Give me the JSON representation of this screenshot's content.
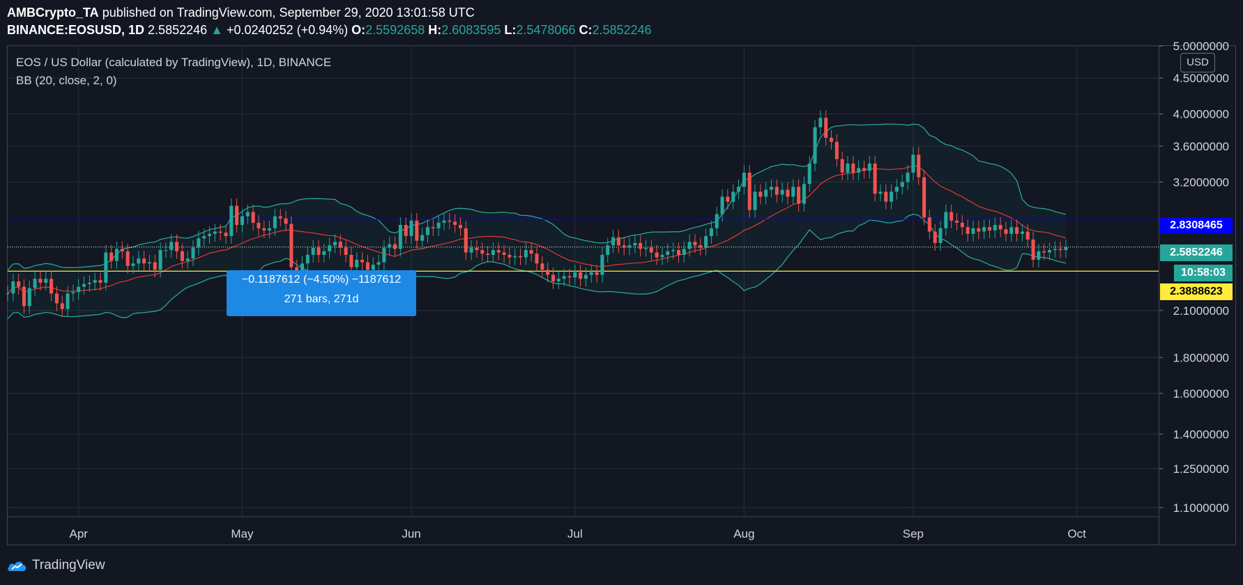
{
  "header": {
    "author": "AMBCrypto_TA",
    "published": "published on TradingView.com, September 29, 2020 13:01:58 UTC",
    "symbol": "BINANCE:EOSUSD, 1D",
    "last": "2.5852246",
    "change": "+0.0240252 (+0.94%)",
    "o_label": "O:",
    "o_value": "2.5592658",
    "h_label": "H:",
    "h_value": "2.6083595",
    "l_label": "L:",
    "l_value": "2.5478066",
    "c_label": "C:",
    "c_value": "2.5852246"
  },
  "legend": {
    "symbol_title": "EOS / US Dollar (calculated by TradingView), 1D, BINANCE",
    "indicator": "BB (20, close, 2, 0)"
  },
  "axis_currency": "USD",
  "tags": {
    "blue_line": "2.8308465",
    "price": "2.5852246",
    "countdown": "10:58:03",
    "yellow_line": "2.3888623"
  },
  "tooltip": {
    "line1": "−0.1187612 (−4.50%) −1187612",
    "line2": "271 bars, 271d"
  },
  "footer": {
    "brand": "TradingView"
  },
  "colors": {
    "background": "#131722",
    "up": "#26a69a",
    "down": "#ef5350",
    "bb_band": "#26a69a",
    "bb_basis": "#e53935",
    "blue_line": "#0000ff",
    "yellow_line": "#ffeb3b",
    "tooltip": "#1e88e5"
  },
  "chart_data": {
    "type": "candlestick",
    "title": "EOS / US Dollar (calculated by TradingView), 1D, BINANCE",
    "y_scale": "log",
    "ylim": [
      1.07,
      5.0
    ],
    "y_ticks": [
      "5.0000000",
      "4.5000000",
      "4.0000000",
      "3.6000000",
      "3.2000000",
      "2.1000000",
      "1.8000000",
      "1.6000000",
      "1.4000000",
      "1.2500000",
      "1.1000000"
    ],
    "x_ticks": [
      "Apr",
      "May",
      "Jun",
      "Jul",
      "Aug",
      "Sep",
      "Oct"
    ],
    "x_tick_dates": [
      "2020-04-01",
      "2020-05-01",
      "2020-06-01",
      "2020-07-01",
      "2020-08-01",
      "2020-09-01",
      "2020-10-01"
    ],
    "xlim": [
      "2020-03-19",
      "2020-10-16"
    ],
    "horizontal_lines": [
      {
        "value": 2.8308465,
        "color": "#0000ff"
      },
      {
        "value": 2.3888623,
        "color": "#ffeb3b"
      },
      {
        "value": 2.5852246,
        "color": "#ffffff",
        "style": "dotted"
      }
    ],
    "measure_range": [
      "2020-01-02",
      "2020-09-29"
    ],
    "closes": [
      [
        "2020-03-19",
        2.22
      ],
      [
        "2020-03-20",
        2.31
      ],
      [
        "2020-03-21",
        2.27
      ],
      [
        "2020-03-22",
        2.13
      ],
      [
        "2020-03-23",
        2.26
      ],
      [
        "2020-03-24",
        2.33
      ],
      [
        "2020-03-25",
        2.3
      ],
      [
        "2020-03-26",
        2.33
      ],
      [
        "2020-03-27",
        2.22
      ],
      [
        "2020-03-28",
        2.15
      ],
      [
        "2020-03-29",
        2.11
      ],
      [
        "2020-03-30",
        2.22
      ],
      [
        "2020-03-31",
        2.23
      ],
      [
        "2020-04-01",
        2.27
      ],
      [
        "2020-04-02",
        2.29
      ],
      [
        "2020-04-03",
        2.3
      ],
      [
        "2020-04-04",
        2.32
      ],
      [
        "2020-04-05",
        2.3
      ],
      [
        "2020-04-06",
        2.54
      ],
      [
        "2020-04-07",
        2.47
      ],
      [
        "2020-04-08",
        2.57
      ],
      [
        "2020-04-09",
        2.55
      ],
      [
        "2020-04-10",
        2.43
      ],
      [
        "2020-04-11",
        2.45
      ],
      [
        "2020-04-12",
        2.49
      ],
      [
        "2020-04-13",
        2.45
      ],
      [
        "2020-04-14",
        2.46
      ],
      [
        "2020-04-15",
        2.4
      ],
      [
        "2020-04-16",
        2.56
      ],
      [
        "2020-04-17",
        2.56
      ],
      [
        "2020-04-18",
        2.63
      ],
      [
        "2020-04-19",
        2.55
      ],
      [
        "2020-04-20",
        2.47
      ],
      [
        "2020-04-21",
        2.49
      ],
      [
        "2020-04-22",
        2.58
      ],
      [
        "2020-04-23",
        2.66
      ],
      [
        "2020-04-24",
        2.68
      ],
      [
        "2020-04-25",
        2.7
      ],
      [
        "2020-04-26",
        2.72
      ],
      [
        "2020-04-27",
        2.71
      ],
      [
        "2020-04-28",
        2.68
      ],
      [
        "2020-04-29",
        2.96
      ],
      [
        "2020-04-30",
        2.78
      ],
      [
        "2020-05-01",
        2.86
      ],
      [
        "2020-05-02",
        2.9
      ],
      [
        "2020-05-03",
        2.8
      ],
      [
        "2020-05-04",
        2.75
      ],
      [
        "2020-05-05",
        2.73
      ],
      [
        "2020-05-06",
        2.75
      ],
      [
        "2020-05-07",
        2.86
      ],
      [
        "2020-05-08",
        2.84
      ],
      [
        "2020-05-09",
        2.79
      ],
      [
        "2020-05-10",
        2.42
      ],
      [
        "2020-05-11",
        2.35
      ],
      [
        "2020-05-12",
        2.45
      ],
      [
        "2020-05-13",
        2.52
      ],
      [
        "2020-05-14",
        2.58
      ],
      [
        "2020-05-15",
        2.52
      ],
      [
        "2020-05-16",
        2.55
      ],
      [
        "2020-05-17",
        2.6
      ],
      [
        "2020-05-18",
        2.63
      ],
      [
        "2020-05-19",
        2.58
      ],
      [
        "2020-05-20",
        2.52
      ],
      [
        "2020-05-21",
        2.42
      ],
      [
        "2020-05-22",
        2.48
      ],
      [
        "2020-05-23",
        2.46
      ],
      [
        "2020-05-24",
        2.4
      ],
      [
        "2020-05-25",
        2.44
      ],
      [
        "2020-05-26",
        2.46
      ],
      [
        "2020-05-27",
        2.58
      ],
      [
        "2020-05-28",
        2.61
      ],
      [
        "2020-05-29",
        2.57
      ],
      [
        "2020-05-30",
        2.78
      ],
      [
        "2020-05-31",
        2.68
      ],
      [
        "2020-06-01",
        2.82
      ],
      [
        "2020-06-02",
        2.64
      ],
      [
        "2020-06-03",
        2.69
      ],
      [
        "2020-06-04",
        2.76
      ],
      [
        "2020-06-05",
        2.75
      ],
      [
        "2020-06-06",
        2.8
      ],
      [
        "2020-06-07",
        2.82
      ],
      [
        "2020-06-08",
        2.81
      ],
      [
        "2020-06-09",
        2.78
      ],
      [
        "2020-06-10",
        2.75
      ],
      [
        "2020-06-11",
        2.54
      ],
      [
        "2020-06-12",
        2.58
      ],
      [
        "2020-06-13",
        2.56
      ],
      [
        "2020-06-14",
        2.53
      ],
      [
        "2020-06-15",
        2.52
      ],
      [
        "2020-06-16",
        2.56
      ],
      [
        "2020-06-17",
        2.54
      ],
      [
        "2020-06-18",
        2.52
      ],
      [
        "2020-06-19",
        2.5
      ],
      [
        "2020-06-20",
        2.51
      ],
      [
        "2020-06-21",
        2.5
      ],
      [
        "2020-06-22",
        2.56
      ],
      [
        "2020-06-23",
        2.53
      ],
      [
        "2020-06-24",
        2.45
      ],
      [
        "2020-06-25",
        2.4
      ],
      [
        "2020-06-26",
        2.36
      ],
      [
        "2020-06-27",
        2.31
      ],
      [
        "2020-06-28",
        2.33
      ],
      [
        "2020-06-29",
        2.35
      ],
      [
        "2020-06-30",
        2.34
      ],
      [
        "2020-07-01",
        2.38
      ],
      [
        "2020-07-02",
        2.33
      ],
      [
        "2020-07-03",
        2.36
      ],
      [
        "2020-07-04",
        2.38
      ],
      [
        "2020-07-05",
        2.36
      ],
      [
        "2020-07-06",
        2.52
      ],
      [
        "2020-07-07",
        2.6
      ],
      [
        "2020-07-08",
        2.67
      ],
      [
        "2020-07-09",
        2.6
      ],
      [
        "2020-07-10",
        2.58
      ],
      [
        "2020-07-11",
        2.6
      ],
      [
        "2020-07-12",
        2.62
      ],
      [
        "2020-07-13",
        2.57
      ],
      [
        "2020-07-14",
        2.58
      ],
      [
        "2020-07-15",
        2.54
      ],
      [
        "2020-07-16",
        2.5
      ],
      [
        "2020-07-17",
        2.52
      ],
      [
        "2020-07-18",
        2.55
      ],
      [
        "2020-07-19",
        2.56
      ],
      [
        "2020-07-20",
        2.52
      ],
      [
        "2020-07-21",
        2.57
      ],
      [
        "2020-07-22",
        2.63
      ],
      [
        "2020-07-23",
        2.6
      ],
      [
        "2020-07-24",
        2.58
      ],
      [
        "2020-07-25",
        2.68
      ],
      [
        "2020-07-26",
        2.75
      ],
      [
        "2020-07-27",
        2.88
      ],
      [
        "2020-07-28",
        3.05
      ],
      [
        "2020-07-29",
        3.0
      ],
      [
        "2020-07-30",
        3.1
      ],
      [
        "2020-07-31",
        3.15
      ],
      [
        "2020-08-01",
        3.3
      ],
      [
        "2020-08-02",
        2.92
      ],
      [
        "2020-08-03",
        3.1
      ],
      [
        "2020-08-04",
        3.05
      ],
      [
        "2020-08-05",
        3.12
      ],
      [
        "2020-08-06",
        3.15
      ],
      [
        "2020-08-07",
        3.07
      ],
      [
        "2020-08-08",
        3.12
      ],
      [
        "2020-08-09",
        3.05
      ],
      [
        "2020-08-10",
        3.15
      ],
      [
        "2020-08-11",
        2.98
      ],
      [
        "2020-08-12",
        3.18
      ],
      [
        "2020-08-13",
        3.4
      ],
      [
        "2020-08-14",
        3.83
      ],
      [
        "2020-08-15",
        3.95
      ],
      [
        "2020-08-16",
        3.7
      ],
      [
        "2020-08-17",
        3.65
      ],
      [
        "2020-08-18",
        3.45
      ],
      [
        "2020-08-19",
        3.3
      ],
      [
        "2020-08-20",
        3.4
      ],
      [
        "2020-08-21",
        3.3
      ],
      [
        "2020-08-22",
        3.35
      ],
      [
        "2020-08-23",
        3.32
      ],
      [
        "2020-08-24",
        3.4
      ],
      [
        "2020-08-25",
        3.08
      ],
      [
        "2020-08-26",
        3.1
      ],
      [
        "2020-08-27",
        3.0
      ],
      [
        "2020-08-28",
        3.1
      ],
      [
        "2020-08-29",
        3.15
      ],
      [
        "2020-08-30",
        3.2
      ],
      [
        "2020-08-31",
        3.3
      ],
      [
        "2020-09-01",
        3.5
      ],
      [
        "2020-09-02",
        3.25
      ],
      [
        "2020-09-03",
        2.85
      ],
      [
        "2020-09-04",
        2.72
      ],
      [
        "2020-09-05",
        2.62
      ],
      [
        "2020-09-06",
        2.75
      ],
      [
        "2020-09-07",
        2.9
      ],
      [
        "2020-09-08",
        2.82
      ],
      [
        "2020-09-09",
        2.8
      ],
      [
        "2020-09-10",
        2.76
      ],
      [
        "2020-09-11",
        2.7
      ],
      [
        "2020-09-12",
        2.75
      ],
      [
        "2020-09-13",
        2.72
      ],
      [
        "2020-09-14",
        2.76
      ],
      [
        "2020-09-15",
        2.73
      ],
      [
        "2020-09-16",
        2.78
      ],
      [
        "2020-09-17",
        2.74
      ],
      [
        "2020-09-18",
        2.7
      ],
      [
        "2020-09-19",
        2.76
      ],
      [
        "2020-09-20",
        2.7
      ],
      [
        "2020-09-21",
        2.72
      ],
      [
        "2020-09-22",
        2.65
      ],
      [
        "2020-09-23",
        2.48
      ],
      [
        "2020-09-24",
        2.55
      ],
      [
        "2020-09-25",
        2.54
      ],
      [
        "2020-09-26",
        2.56
      ],
      [
        "2020-09-27",
        2.57
      ],
      [
        "2020-09-28",
        2.56
      ],
      [
        "2020-09-29",
        2.5852246
      ]
    ]
  }
}
